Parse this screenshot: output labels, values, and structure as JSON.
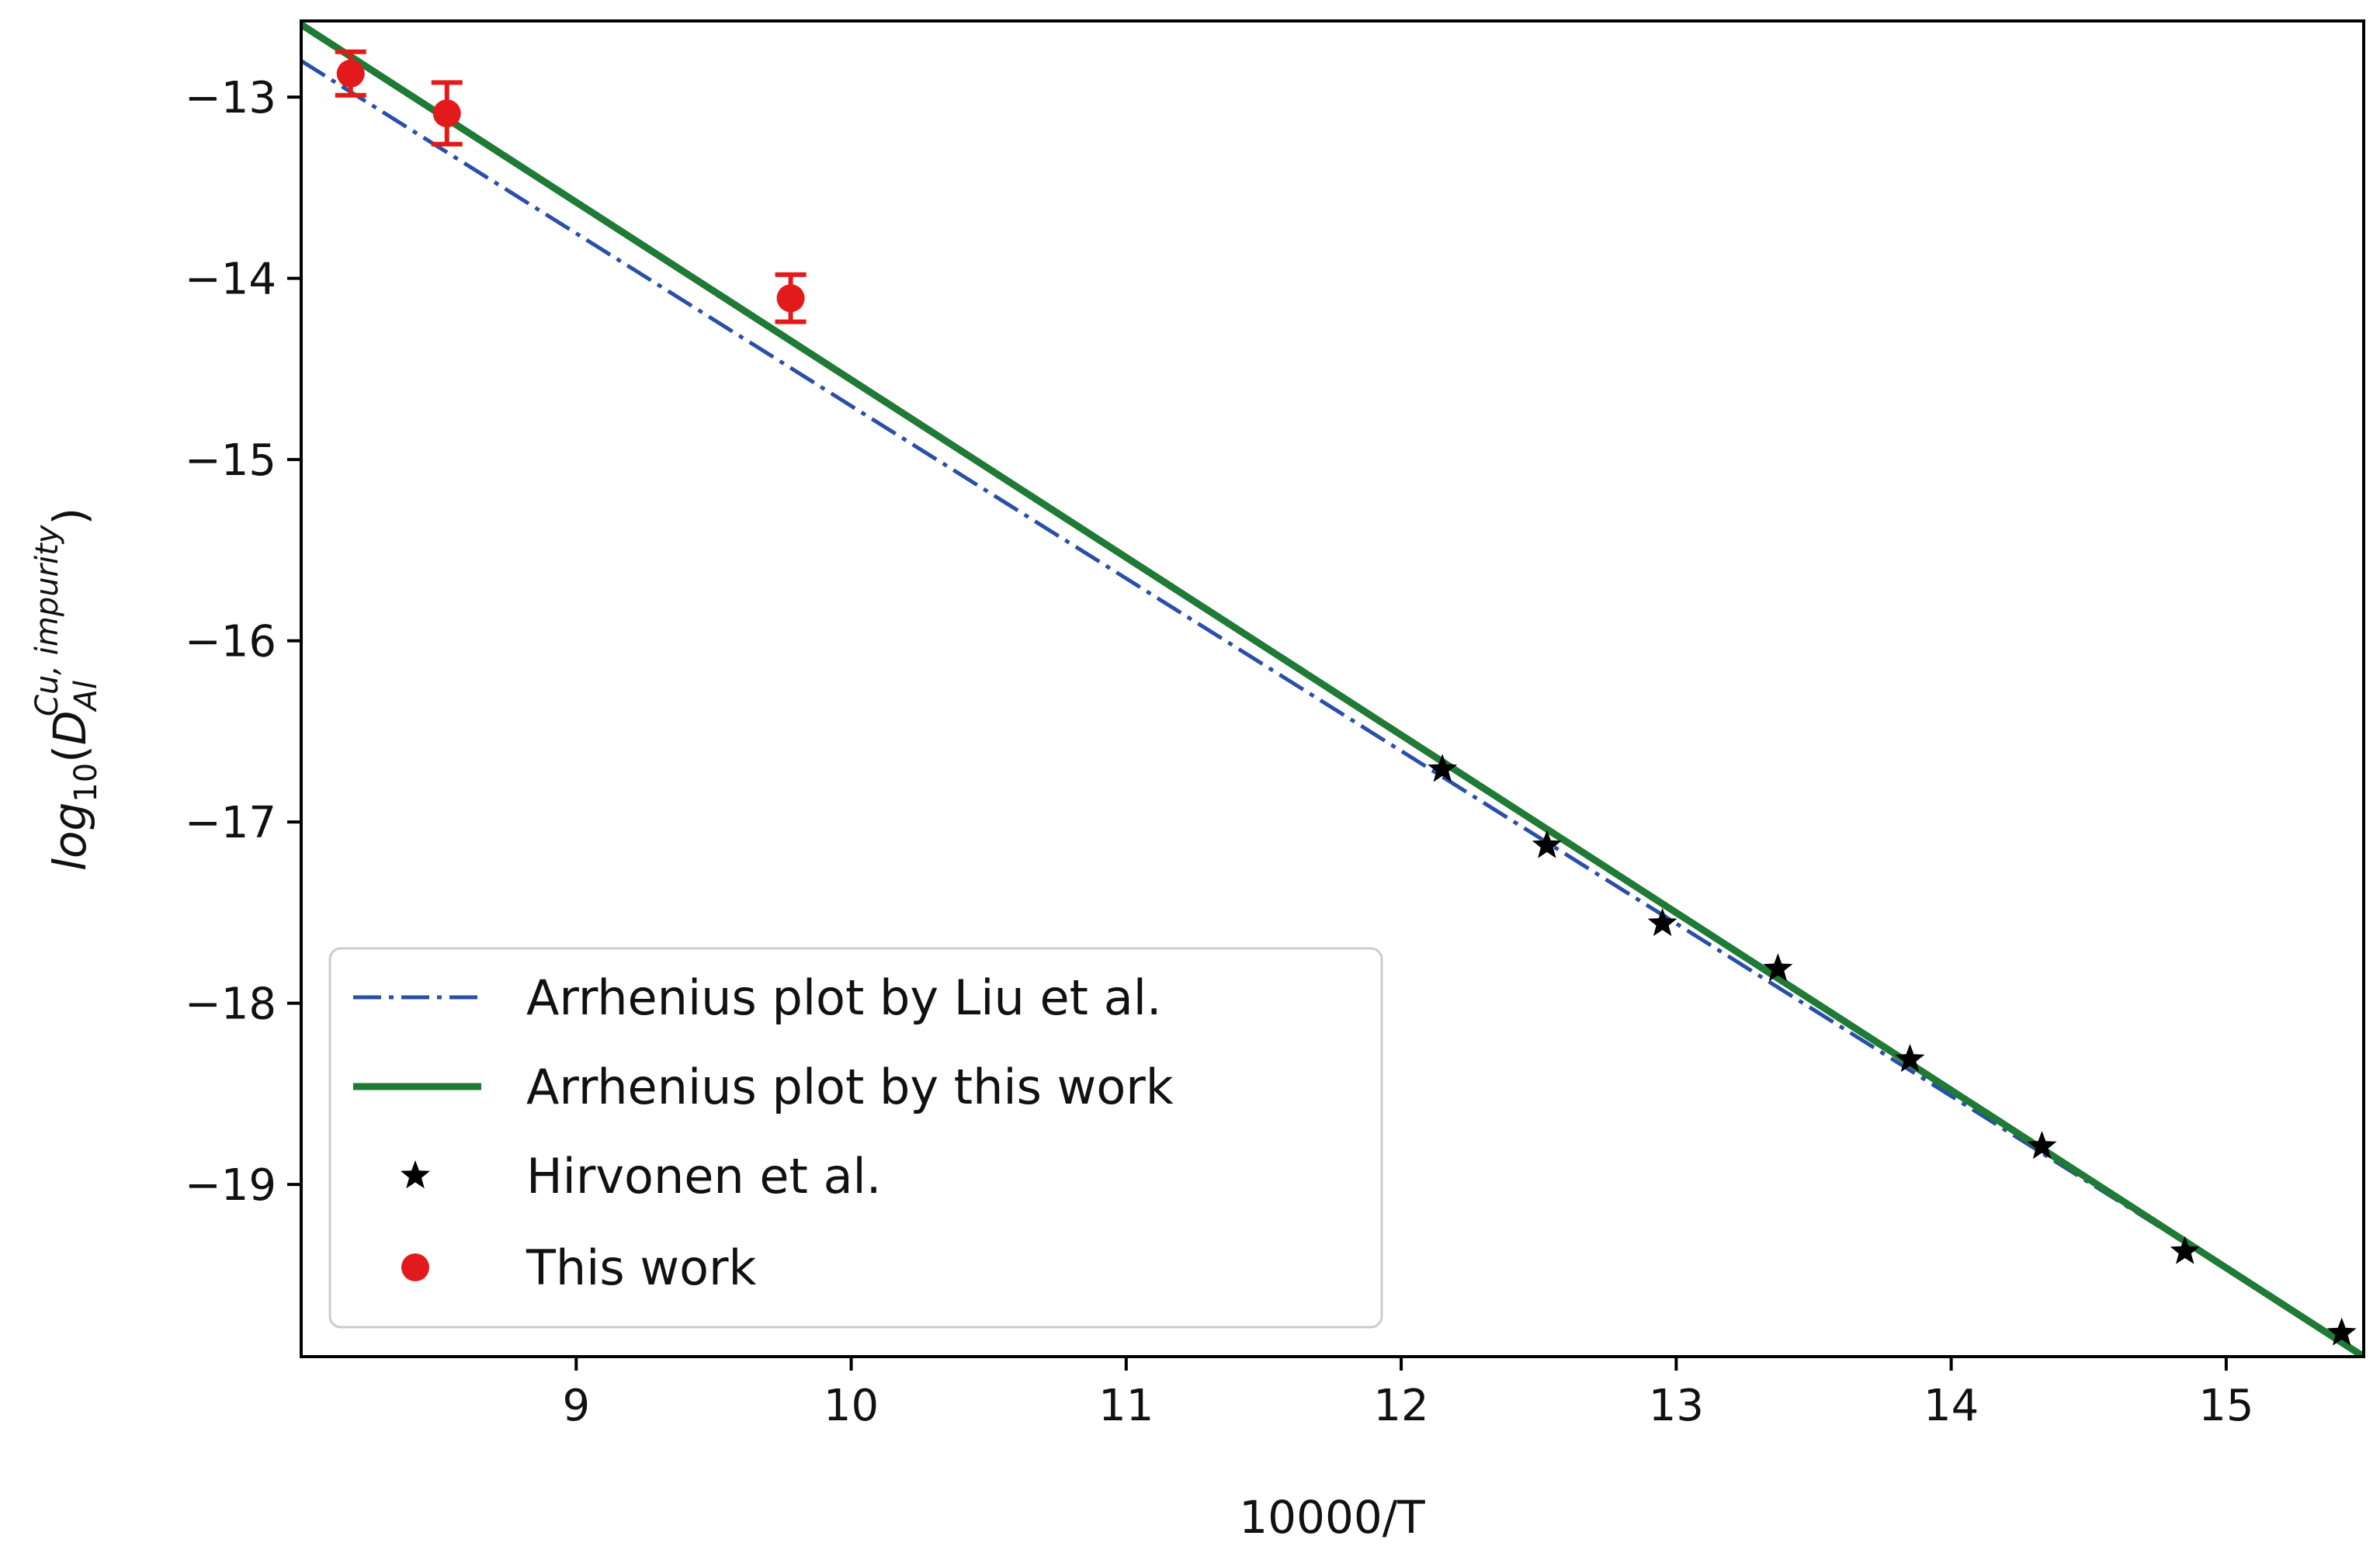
{
  "chart_data": {
    "type": "scatter",
    "xlabel": "10000/T",
    "ylabel": {
      "prefix": "log",
      "sub": "10",
      "open": "(",
      "var": "D",
      "var_sub": "Al",
      "var_sup": "Cu, impurity",
      "close": ")"
    },
    "xlim": [
      8.0,
      15.5
    ],
    "ylim": [
      -19.95,
      -12.58
    ],
    "x_ticks": [
      9,
      10,
      11,
      12,
      13,
      14,
      15
    ],
    "y_ticks": [
      -13,
      -14,
      -15,
      -16,
      -17,
      -18,
      -19
    ],
    "grid": false,
    "legend_position": "bottom-left",
    "series": [
      {
        "name": "Arrhenius plot by Liu et al.",
        "kind": "line",
        "style": "dashdot",
        "color": "#2a4fa8",
        "x": [
          8.0,
          15.5
        ],
        "y": [
          -12.8,
          -19.94
        ]
      },
      {
        "name": "Arrhenius plot by this work",
        "kind": "line",
        "style": "solid",
        "color": "#1e7a34",
        "x": [
          8.0,
          15.5
        ],
        "y": [
          -12.6,
          -19.95
        ]
      },
      {
        "name": "Hirvonen et al.",
        "kind": "scatter",
        "marker": "star",
        "color": "#000000",
        "x": [
          12.15,
          12.53,
          12.95,
          13.37,
          13.85,
          14.33,
          14.85,
          15.42
        ],
        "y": [
          -16.71,
          -17.13,
          -17.56,
          -17.81,
          -18.31,
          -18.79,
          -19.37,
          -19.82
        ]
      },
      {
        "name": "This work",
        "kind": "scatter",
        "marker": "circle",
        "color": "#e31a1c",
        "x": [
          8.18,
          8.53,
          9.78
        ],
        "y": [
          -12.87,
          -13.09,
          -14.11
        ],
        "yerr": [
          0.12,
          0.17,
          0.13
        ]
      }
    ]
  }
}
